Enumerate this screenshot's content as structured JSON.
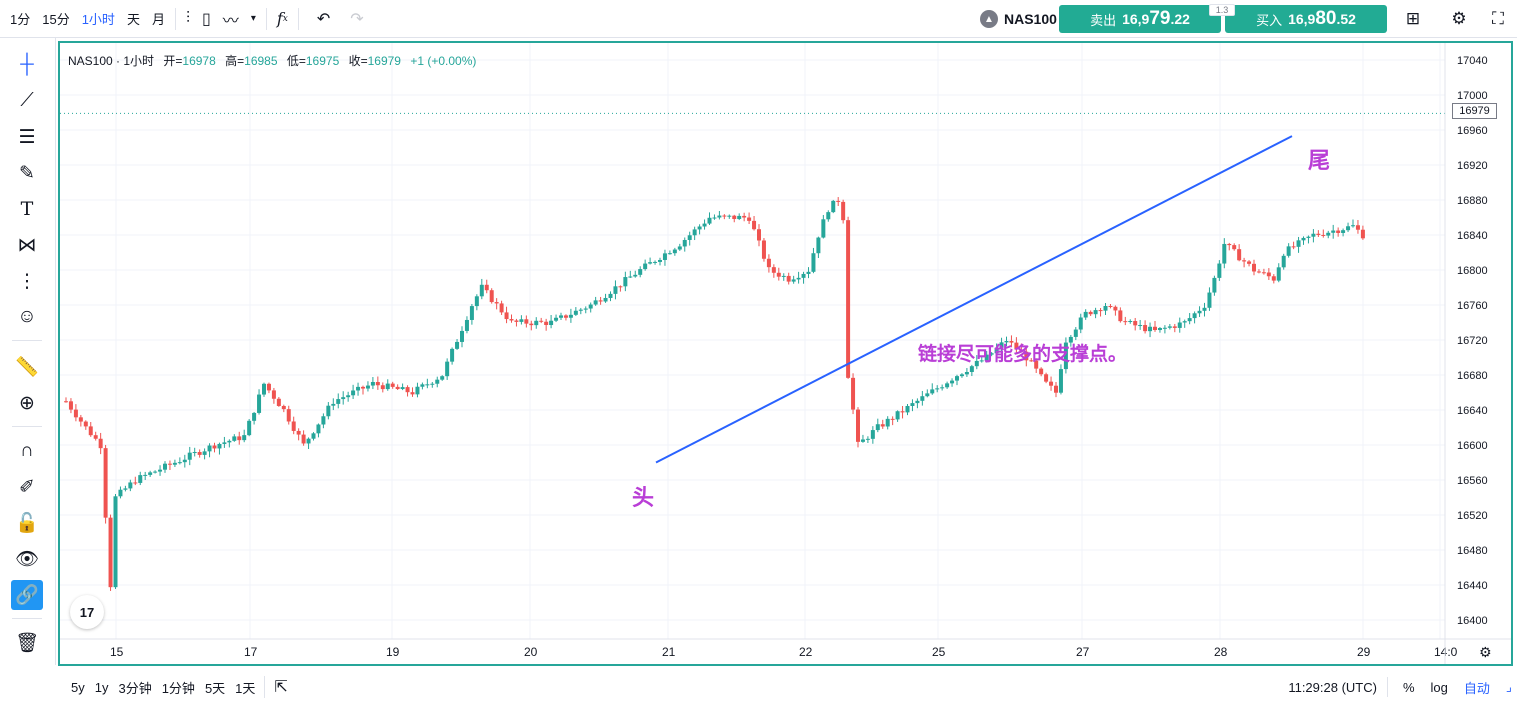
{
  "toolbar": {
    "intervals": [
      "1分",
      "15分",
      "1小时",
      "天",
      "月"
    ],
    "active_interval": "1小时"
  },
  "symbol": {
    "name": "NAS100",
    "sell_label": "卖出",
    "sell_prefix": "16,9",
    "sell_big": "79",
    "sell_suffix": ".22",
    "buy_label": "买入",
    "buy_prefix": "16,9",
    "buy_big": "80",
    "buy_suffix": ".52",
    "spread": "1.3"
  },
  "legend": {
    "symbol": "NAS100 · 1小时",
    "open_label": "开=",
    "open": "16978",
    "high_label": "高=",
    "high": "16985",
    "low_label": "低=",
    "low": "16975",
    "close_label": "收=",
    "close": "16979",
    "change": "+1 (+0.00%)"
  },
  "annotations": {
    "head": "头",
    "tail": "尾",
    "text": "链接尽可能多的支撑点。"
  },
  "current_price": "16979",
  "chart_data": {
    "type": "candlestick",
    "x_ticks": [
      "15",
      "17",
      "19",
      "20",
      "21",
      "22",
      "25",
      "27",
      "28",
      "29",
      "14:0"
    ],
    "y_ticks": [
      17040,
      17000,
      16960,
      16920,
      16880,
      16840,
      16800,
      16760,
      16720,
      16680,
      16640,
      16600,
      16560,
      16520,
      16480,
      16440,
      16400
    ],
    "ylim": [
      16380,
      17060
    ],
    "up_color": "#26a69a",
    "down_color": "#ef5350",
    "anchors": [
      [
        0,
        16650
      ],
      [
        4,
        16620
      ],
      [
        7,
        16600
      ],
      [
        8,
        16520
      ],
      [
        9,
        16440
      ],
      [
        10,
        16540
      ],
      [
        14,
        16560
      ],
      [
        22,
        16580
      ],
      [
        30,
        16600
      ],
      [
        36,
        16610
      ],
      [
        40,
        16670
      ],
      [
        44,
        16640
      ],
      [
        48,
        16600
      ],
      [
        54,
        16650
      ],
      [
        62,
        16670
      ],
      [
        70,
        16660
      ],
      [
        76,
        16680
      ],
      [
        82,
        16760
      ],
      [
        84,
        16780
      ],
      [
        90,
        16740
      ],
      [
        98,
        16740
      ],
      [
        106,
        16760
      ],
      [
        116,
        16800
      ],
      [
        124,
        16830
      ],
      [
        130,
        16860
      ],
      [
        134,
        16860
      ],
      [
        138,
        16860
      ],
      [
        142,
        16800
      ],
      [
        146,
        16790
      ],
      [
        150,
        16800
      ],
      [
        152,
        16840
      ],
      [
        154,
        16870
      ],
      [
        156,
        16880
      ],
      [
        157,
        16860
      ],
      [
        158,
        16680
      ],
      [
        160,
        16600
      ],
      [
        164,
        16620
      ],
      [
        172,
        16650
      ],
      [
        180,
        16680
      ],
      [
        186,
        16700
      ],
      [
        190,
        16720
      ],
      [
        194,
        16700
      ],
      [
        198,
        16670
      ],
      [
        200,
        16660
      ],
      [
        202,
        16720
      ],
      [
        206,
        16750
      ],
      [
        210,
        16760
      ],
      [
        214,
        16740
      ],
      [
        220,
        16730
      ],
      [
        226,
        16740
      ],
      [
        230,
        16760
      ],
      [
        232,
        16790
      ],
      [
        234,
        16830
      ],
      [
        236,
        16820
      ],
      [
        240,
        16800
      ],
      [
        244,
        16790
      ],
      [
        246,
        16820
      ],
      [
        252,
        16840
      ],
      [
        260,
        16850
      ],
      [
        264,
        16830
      ],
      [
        268,
        16840
      ],
      [
        272,
        16870
      ],
      [
        274,
        16880
      ],
      [
        278,
        16910
      ],
      [
        282,
        16900
      ],
      [
        290,
        16900
      ],
      [
        298,
        16910
      ],
      [
        304,
        16910
      ],
      [
        308,
        16900
      ],
      [
        312,
        16920
      ],
      [
        316,
        16940
      ],
      [
        318,
        16940
      ],
      [
        322,
        16960
      ],
      [
        326,
        16980
      ],
      [
        330,
        16980
      ],
      [
        334,
        16980
      ],
      [
        338,
        16979
      ]
    ],
    "trendline": {
      "from": [
        160,
        16580
      ],
      "to": [
        354,
        16953
      ]
    }
  },
  "bottom": {
    "ranges": [
      "5y",
      "1y",
      "3分钟",
      "1分钟",
      "5天",
      "1天"
    ],
    "clock": "11:29:28 (UTC)",
    "percent": "%",
    "log": "log",
    "auto": "自动"
  }
}
